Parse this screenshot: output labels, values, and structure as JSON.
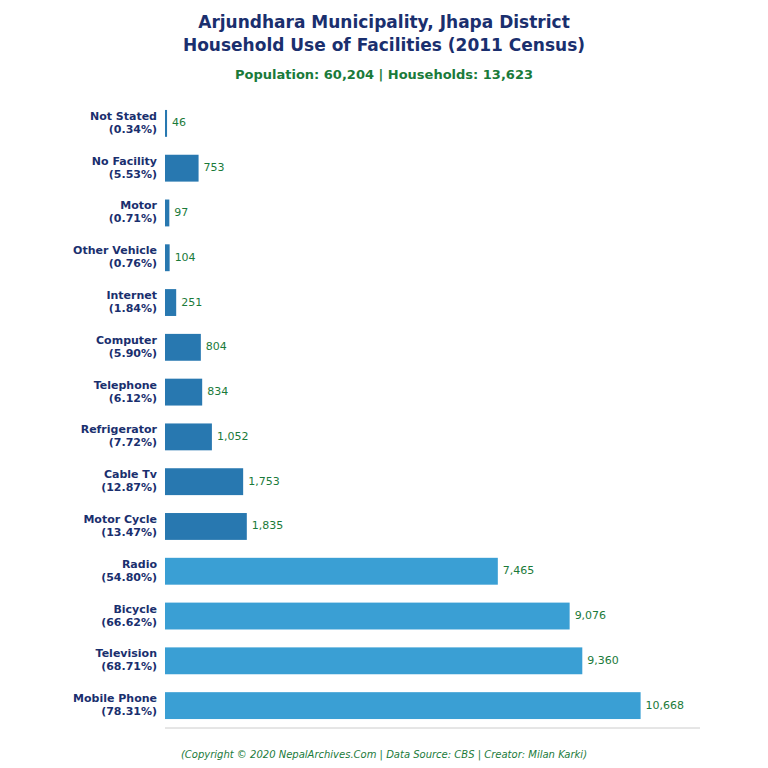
{
  "chart_data": {
    "type": "bar",
    "orientation": "horizontal",
    "title": "Arjundhara Municipality, Jhapa District\nHousehold Use of Facilities (2011 Census)",
    "subtitle": "Population: 60,204 | Households: 13,623",
    "annotations": [
      "(Copyright © 2020 NepalArchives.Com | Data Source: CBS | Creator: Milan Karki)"
    ],
    "categories": [
      "Not Stated\n(0.34%)",
      "No Facility\n(5.53%)",
      "Motor\n(0.71%)",
      "Other Vehicle\n(0.76%)",
      "Internet\n(1.84%)",
      "Computer\n(5.90%)",
      "Telephone\n(6.12%)",
      "Refrigerator\n(7.72%)",
      "Cable Tv\n(12.87%)",
      "Motor Cycle\n(13.47%)",
      "Radio\n(54.80%)",
      "Bicycle\n(66.62%)",
      "Television\n(68.71%)",
      "Mobile Phone\n(78.31%)"
    ],
    "values": [
      46,
      753,
      97,
      104,
      251,
      804,
      834,
      1052,
      1753,
      1835,
      7465,
      9076,
      9360,
      10668
    ],
    "value_labels": [
      "46",
      "753",
      "97",
      "104",
      "251",
      "804",
      "834",
      "1,052",
      "1,753",
      "1,835",
      "7,465",
      "9,076",
      "9,360",
      "10,668"
    ],
    "colors": [
      "#2878b0",
      "#2878b0",
      "#2878b0",
      "#2878b0",
      "#2878b0",
      "#2878b0",
      "#2878b0",
      "#2878b0",
      "#2878b0",
      "#2878b0",
      "#3a9fd4",
      "#3a9fd4",
      "#3a9fd4",
      "#3a9fd4"
    ],
    "xlim": [
      0,
      12000
    ],
    "data_labels": true,
    "tick_labels": "y",
    "grid": false
  }
}
